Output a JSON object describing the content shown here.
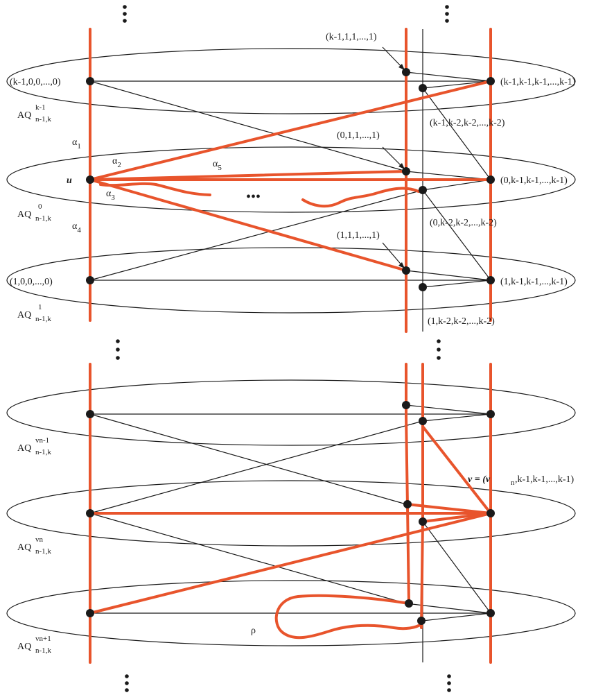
{
  "colors": {
    "path": "#e8542c",
    "line": "#1a1a1a"
  },
  "labels": {
    "top_left_node": "(k-1,0,0,...,0)",
    "top_mid_node": "(k-1,1,1,...,1)",
    "top_right_node": "(k-1,k-1,k-1,...,k-1)",
    "top_right2_node": "(k-1,k-2,k-2,...,k-2)",
    "mid_mid_node": "(0,1,1,...,1)",
    "mid_right_node": "(0,k-1,k-1,...,k-1)",
    "mid_right2_node": "(0,k-2,k-2,...,k-2)",
    "low_mid_node": "(1,1,1,...,1)",
    "low_left_node": "(1,0,0,...,0)",
    "low_right_node": "(1,k-1,k-1,...,k-1)",
    "low_right2_node": "(1,k-2,k-2,...,k-2)",
    "u": "u",
    "v": "v = (v",
    "v_sub": "n",
    "v_tail": ",k-1,k-1,...,k-1)",
    "rho": "ρ",
    "dots_mid": "•••"
  },
  "alphas": [
    {
      "base": "α",
      "sub": "1"
    },
    {
      "base": "α",
      "sub": "2"
    },
    {
      "base": "α",
      "sub": "3"
    },
    {
      "base": "α",
      "sub": "4"
    },
    {
      "base": "α",
      "sub": "5"
    }
  ],
  "subcubes": [
    {
      "base": "AQ",
      "sup": "k-1",
      "sub": "n-1,k"
    },
    {
      "base": "AQ",
      "sup": "0",
      "sub": "n-1,k"
    },
    {
      "base": "AQ",
      "sup": "1",
      "sub": "n-1,k"
    },
    {
      "base": "AQ",
      "sup": "vn-1",
      "sub": "n-1,k"
    },
    {
      "base": "AQ",
      "sup": "vn",
      "sub": "n-1,k"
    },
    {
      "base": "AQ",
      "sup": "vn+1",
      "sub": "n-1,k"
    }
  ]
}
